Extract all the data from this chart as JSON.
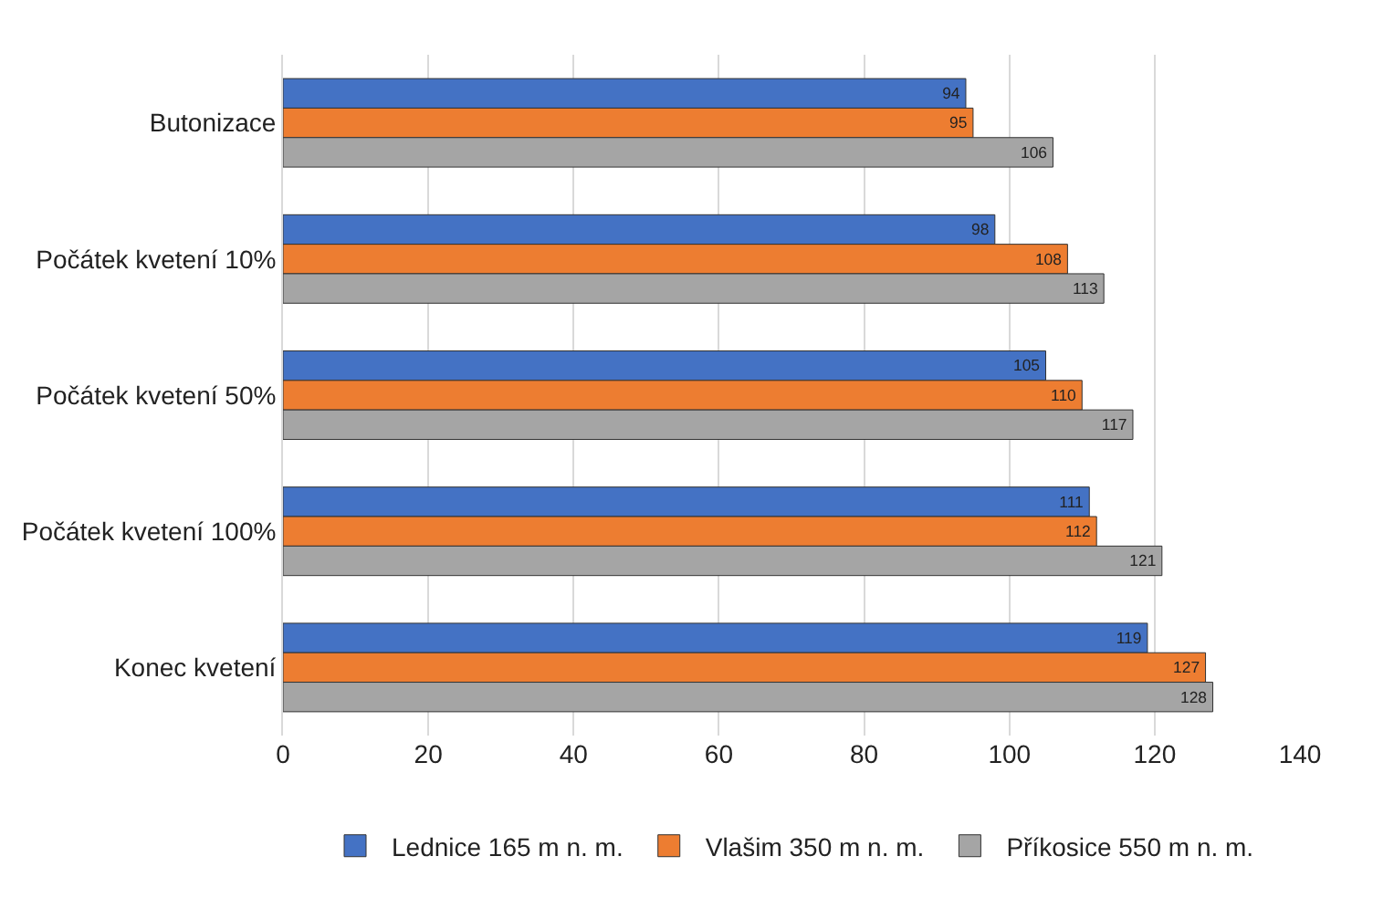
{
  "chart_data": {
    "type": "bar",
    "orientation": "horizontal",
    "categories": [
      "Butonizace",
      "Počátek kvetení 10%",
      "Počátek kvetení 50%",
      "Počátek kvetení 100%",
      "Konec kvetení"
    ],
    "series": [
      {
        "name": "Lednice 165 m n. m.",
        "color": "#4472c4",
        "values": [
          94,
          98,
          105,
          111,
          119
        ]
      },
      {
        "name": "Vlašim 350 m n. m.",
        "color": "#ed7d31",
        "values": [
          95,
          108,
          110,
          112,
          127
        ]
      },
      {
        "name": "Příkosice 550 m n. m.",
        "color": "#a5a5a5",
        "values": [
          106,
          113,
          117,
          121,
          128
        ]
      }
    ],
    "xlim": [
      0,
      140
    ],
    "xticks": [
      0,
      20,
      40,
      60,
      80,
      100,
      120,
      140
    ],
    "grid": "x",
    "legend": "bottom",
    "data_labels": true
  }
}
